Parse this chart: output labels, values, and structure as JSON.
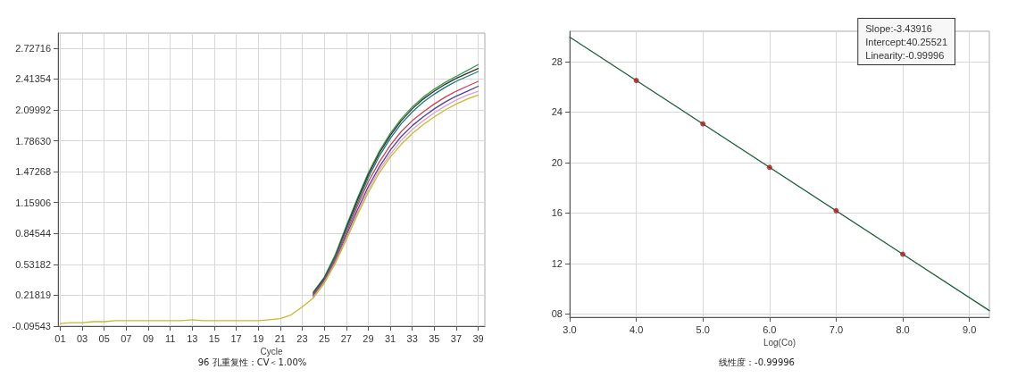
{
  "chart_data": [
    {
      "type": "line",
      "xlabel": "Cycle",
      "annotations": [
        "96 孔重复性：CV＜1.00%"
      ],
      "x": [
        1,
        2,
        3,
        4,
        5,
        6,
        7,
        8,
        9,
        10,
        11,
        12,
        13,
        14,
        15,
        16,
        17,
        18,
        19,
        20,
        21,
        22,
        23,
        24,
        25,
        26,
        27,
        28,
        29,
        30,
        31,
        32,
        33,
        34,
        35,
        36,
        37,
        38,
        39
      ],
      "xlim": [
        0.8,
        39.6
      ],
      "xticks": [
        {
          "value": 1,
          "label": "01"
        },
        {
          "value": 3,
          "label": "03"
        },
        {
          "value": 5,
          "label": "05"
        },
        {
          "value": 7,
          "label": "07"
        },
        {
          "value": 9,
          "label": "09"
        },
        11,
        13,
        15,
        17,
        19,
        21,
        23,
        25,
        27,
        29,
        31,
        33,
        35,
        37,
        39
      ],
      "ylim": [
        -0.09543,
        2.88
      ],
      "yticks": [
        -0.09543,
        0.21819,
        0.53182,
        0.84544,
        1.15906,
        1.47268,
        {
          "value": 1.7863,
          "label": "1.78630"
        },
        2.09992,
        2.41354,
        2.72716
      ],
      "grid": true,
      "marker": "none",
      "line_style": "solid",
      "series": [
        {
          "color": "#3a9a4a",
          "values": [
            null,
            null,
            null,
            null,
            null,
            null,
            null,
            null,
            null,
            null,
            null,
            null,
            null,
            null,
            null,
            null,
            null,
            null,
            null,
            null,
            null,
            null,
            null,
            0.25,
            0.4,
            0.63,
            0.92,
            1.2,
            1.46,
            1.68,
            1.86,
            2.01,
            2.13,
            2.23,
            2.31,
            2.38,
            2.44,
            2.5,
            2.56
          ]
        },
        {
          "color": "#303030",
          "values": [
            null,
            null,
            null,
            null,
            null,
            null,
            null,
            null,
            null,
            null,
            null,
            null,
            null,
            null,
            null,
            null,
            null,
            null,
            null,
            null,
            null,
            null,
            null,
            0.24,
            0.39,
            0.61,
            0.9,
            1.18,
            1.44,
            1.66,
            1.84,
            1.99,
            2.11,
            2.21,
            2.29,
            2.36,
            2.42,
            2.47,
            2.52
          ]
        },
        {
          "color": "#1a7a7a",
          "values": [
            null,
            null,
            null,
            null,
            null,
            null,
            null,
            null,
            null,
            null,
            null,
            null,
            null,
            null,
            null,
            null,
            null,
            null,
            null,
            null,
            null,
            null,
            null,
            0.23,
            0.38,
            0.6,
            0.88,
            1.15,
            1.41,
            1.63,
            1.81,
            1.96,
            2.08,
            2.18,
            2.26,
            2.33,
            2.39,
            2.44,
            2.49
          ]
        },
        {
          "color": "#d04050",
          "values": [
            null,
            null,
            null,
            null,
            null,
            null,
            null,
            null,
            null,
            null,
            null,
            null,
            null,
            null,
            null,
            null,
            null,
            null,
            null,
            null,
            null,
            null,
            null,
            0.22,
            0.37,
            0.58,
            0.85,
            1.12,
            1.37,
            1.57,
            1.74,
            1.88,
            1.99,
            2.08,
            2.16,
            2.23,
            2.29,
            2.34,
            2.39
          ]
        },
        {
          "color": "#5040a0",
          "values": [
            null,
            null,
            null,
            null,
            null,
            null,
            null,
            null,
            null,
            null,
            null,
            null,
            null,
            null,
            null,
            null,
            null,
            null,
            null,
            null,
            null,
            null,
            null,
            0.21,
            0.36,
            0.56,
            0.82,
            1.08,
            1.32,
            1.52,
            1.69,
            1.83,
            1.94,
            2.03,
            2.11,
            2.18,
            2.24,
            2.29,
            2.34
          ]
        },
        {
          "color": "#e0a0c0",
          "values": [
            null,
            null,
            null,
            null,
            null,
            null,
            null,
            null,
            null,
            null,
            null,
            null,
            null,
            null,
            null,
            null,
            null,
            null,
            null,
            null,
            null,
            null,
            null,
            0.2,
            0.35,
            0.55,
            0.8,
            1.05,
            1.29,
            1.49,
            1.65,
            1.79,
            1.9,
            1.99,
            2.07,
            2.14,
            2.2,
            2.25,
            2.29
          ]
        },
        {
          "color": "#c8b830",
          "values": [
            -0.07,
            -0.06,
            -0.06,
            -0.05,
            -0.05,
            -0.04,
            -0.04,
            -0.04,
            -0.04,
            -0.04,
            -0.04,
            -0.04,
            -0.03,
            -0.04,
            -0.04,
            -0.04,
            -0.04,
            -0.04,
            -0.04,
            -0.03,
            -0.02,
            0.02,
            0.1,
            0.19,
            0.34,
            0.54,
            0.78,
            1.03,
            1.26,
            1.46,
            1.62,
            1.75,
            1.86,
            1.95,
            2.03,
            2.1,
            2.16,
            2.21,
            2.25
          ]
        }
      ]
    },
    {
      "type": "scatter",
      "xlabel": "Log(Co)",
      "annotations": [
        "Slope:-3.43916\nIntercept:40.25521\nLinearity:-0.99996",
        "线性度：-0.99996"
      ],
      "xlim": [
        3,
        9.3
      ],
      "xticks": [
        {
          "value": 3,
          "label": "3.0"
        },
        {
          "value": 4,
          "label": "4.0"
        },
        {
          "value": 5,
          "label": "5.0"
        },
        {
          "value": 6,
          "label": "6.0"
        },
        {
          "value": 7,
          "label": "7.0"
        },
        {
          "value": 8,
          "label": "8.0"
        },
        {
          "value": 9,
          "label": "9.0"
        }
      ],
      "ylim": [
        7.75,
        30.4
      ],
      "yticks": [
        {
          "value": 8,
          "label": "08"
        },
        12,
        16,
        20,
        24,
        28
      ],
      "grid": true,
      "marker": "circle",
      "series": [
        {
          "type": "line",
          "color": "#1f5f3a",
          "x": [
            3,
            9.3
          ],
          "values": [
            29.94,
            8.27
          ],
          "line_style": "solid",
          "marker": "none"
        },
        {
          "color": "#a02020",
          "x": [
            4,
            5,
            6,
            7,
            8
          ],
          "values": [
            26.5,
            23.06,
            19.62,
            16.18,
            12.74
          ]
        }
      ]
    }
  ]
}
